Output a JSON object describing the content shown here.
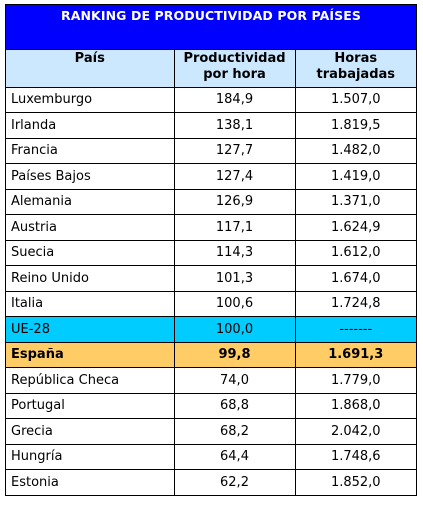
{
  "title": "RANKING DE PRODUCTIVIDAD  POR PAÍSES",
  "headers": {
    "country": "País",
    "productivity": "Productividad por hora",
    "hours": "Horas trabajadas"
  },
  "rows": [
    {
      "country": "Luxemburgo",
      "productivity": "184,9",
      "hours": "1.507,0"
    },
    {
      "country": "Irlanda",
      "productivity": "138,1",
      "hours": "1.819,5"
    },
    {
      "country": "Francia",
      "productivity": "127,7",
      "hours": "1.482,0"
    },
    {
      "country": "Países Bajos",
      "productivity": "127,4",
      "hours": "1.419,0"
    },
    {
      "country": "Alemania",
      "productivity": "126,9",
      "hours": "1.371,0"
    },
    {
      "country": "Austria",
      "productivity": "117,1",
      "hours": "1.624,9"
    },
    {
      "country": "Suecia",
      "productivity": "114,3",
      "hours": "1.612,0"
    },
    {
      "country": "Reino Unido",
      "productivity": "101,3",
      "hours": "1.674,0"
    },
    {
      "country": "Italia",
      "productivity": "100,6",
      "hours": "1.724,8"
    },
    {
      "country": "UE-28",
      "productivity": "100,0",
      "hours": "-------"
    },
    {
      "country": "España",
      "productivity": "99,8",
      "hours": "1.691,3"
    },
    {
      "country": "República Checa",
      "productivity": "74,0",
      "hours": "1.779,0"
    },
    {
      "country": "Portugal",
      "productivity": "68,8",
      "hours": "1.868,0"
    },
    {
      "country": "Grecia",
      "productivity": "68,2",
      "hours": "2.042,0"
    },
    {
      "country": "Hungría",
      "productivity": "64,4",
      "hours": "1.748,6"
    },
    {
      "country": "Estonia",
      "productivity": "62,2",
      "hours": "1.852,0"
    }
  ],
  "colors": {
    "title_bg": "#0000ff",
    "header_bg": "#cce8ff",
    "eu_row_bg": "#00ccff",
    "spain_row_bg": "#ffcc66"
  }
}
